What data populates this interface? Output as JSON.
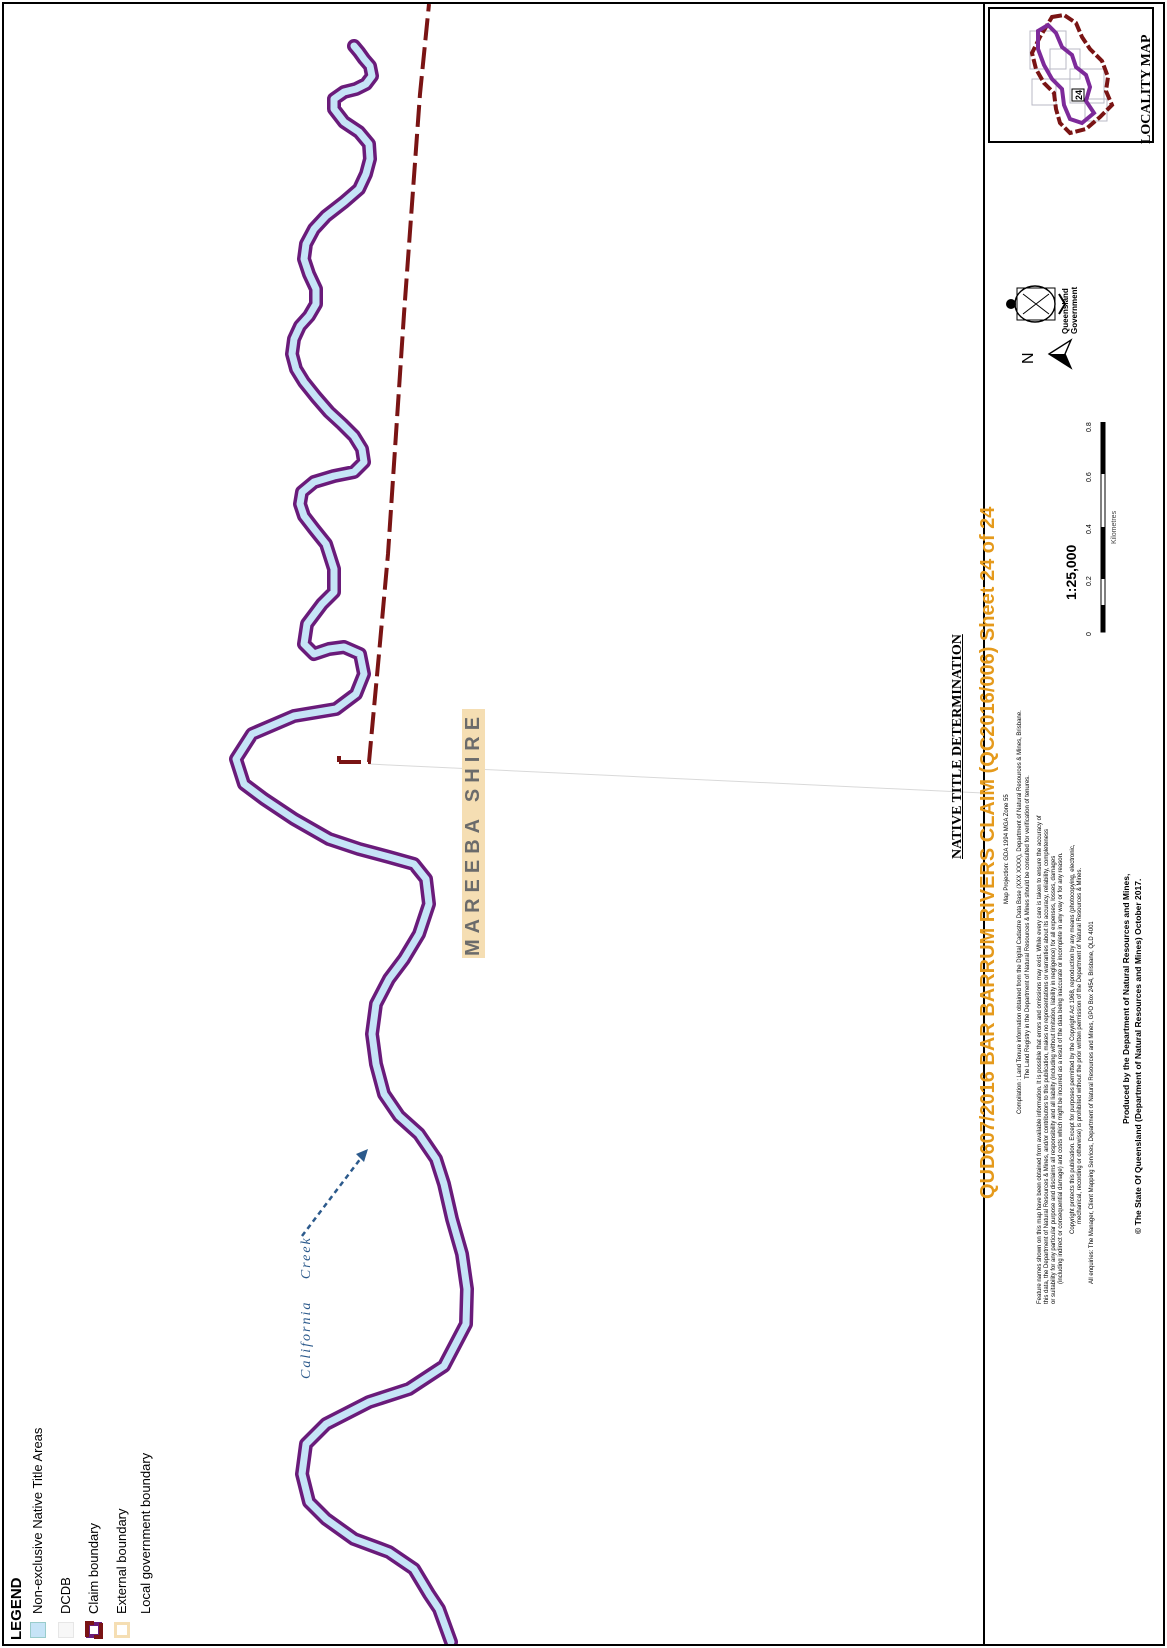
{
  "map": {
    "shire_label": "MAREEBA SHIRE",
    "creek_label": "California Creek"
  },
  "title_block": {
    "heading": "NATIVE TITLE DETERMINATION",
    "title": "QUD607/2016 BAR BARRUM RIVERS CLAIM (QC2016/006) Sheet 24 of 24",
    "projection": "Map Projection: GDA 1994 MGA Zone 55",
    "compilation_1": "Compilation : Land Tenure information obtained from the Digital Cadastre Data Base (XXX XXXX), Department of Natural Resources & Mines, Brisbane.",
    "compilation_2": "The Land Registry in the Department of Natural Resources & Mines should be consulted for verification of tenures.",
    "disclaimer_1": "Feature names shown on this map have been obtained from available information. It is possible that errors and omissions may exist. While every care is taken to ensure the accuracy of",
    "disclaimer_2": "this data, the Department of Natural Resources & Mines, and/or contributors to this publication, makes no representations or warranties about its accuracy, reliability, completeness",
    "disclaimer_3": "or suitability for any particular purpose and disclaims all responsibility and all liability (including without limitation, liability in negligence) for all expenses, losses, damages",
    "disclaimer_4": "(including indirect or consequential damage) and costs which might be incurred as a result of the data being inaccurate or incomplete in any way or for any reason.",
    "copyright_1": "Copyright protects this publication. Except for purposes permitted by the Copyright Act 1968, reproduction by any means (photocopying, electronic,",
    "copyright_2": "mechanical, recording or otherwise) is prohibited without the prior written permission of the Department of Natural Resources & Mines.",
    "enquiries": "All enquiries: The Manager, Client Mapping Services, Department of Natural Resources and Mines, GPO Box 2454, Brisbane, QLD 4001",
    "produced_by": "Produced by the Department of Natural Resources and Mines,",
    "state_copyright": "© The State Of Queensland (Department of Natural Resources and Mines) October 2017."
  },
  "legend": {
    "heading": "LEGEND",
    "items": [
      {
        "label": "Non-exclusive Native Title Areas",
        "color": "#c6e4f7"
      },
      {
        "label": "DCDB",
        "color": "#f2f2f2"
      },
      {
        "label": "Claim boundary",
        "color": "#6a1b7a"
      },
      {
        "label": "External boundary",
        "color": "#7a1414"
      },
      {
        "label": "Local government boundary",
        "color": "#f5deb3"
      }
    ]
  },
  "scale": {
    "ratio": "1:25,000",
    "unit": "Kilometres",
    "ticks": [
      "0",
      "0.2",
      "0.4",
      "0.6",
      "0.8"
    ]
  },
  "north_label": "N",
  "crest_text": "Queensland Government",
  "locality": {
    "label": "LOCALITY MAP",
    "sheet_number": "24"
  },
  "colors": {
    "claim": "#6a1b7a",
    "native_title_fill": "#c6e4f7",
    "external_boundary": "#7a1414",
    "title_orange": "#e59a1c",
    "creek_blue": "#2c5a8c"
  }
}
